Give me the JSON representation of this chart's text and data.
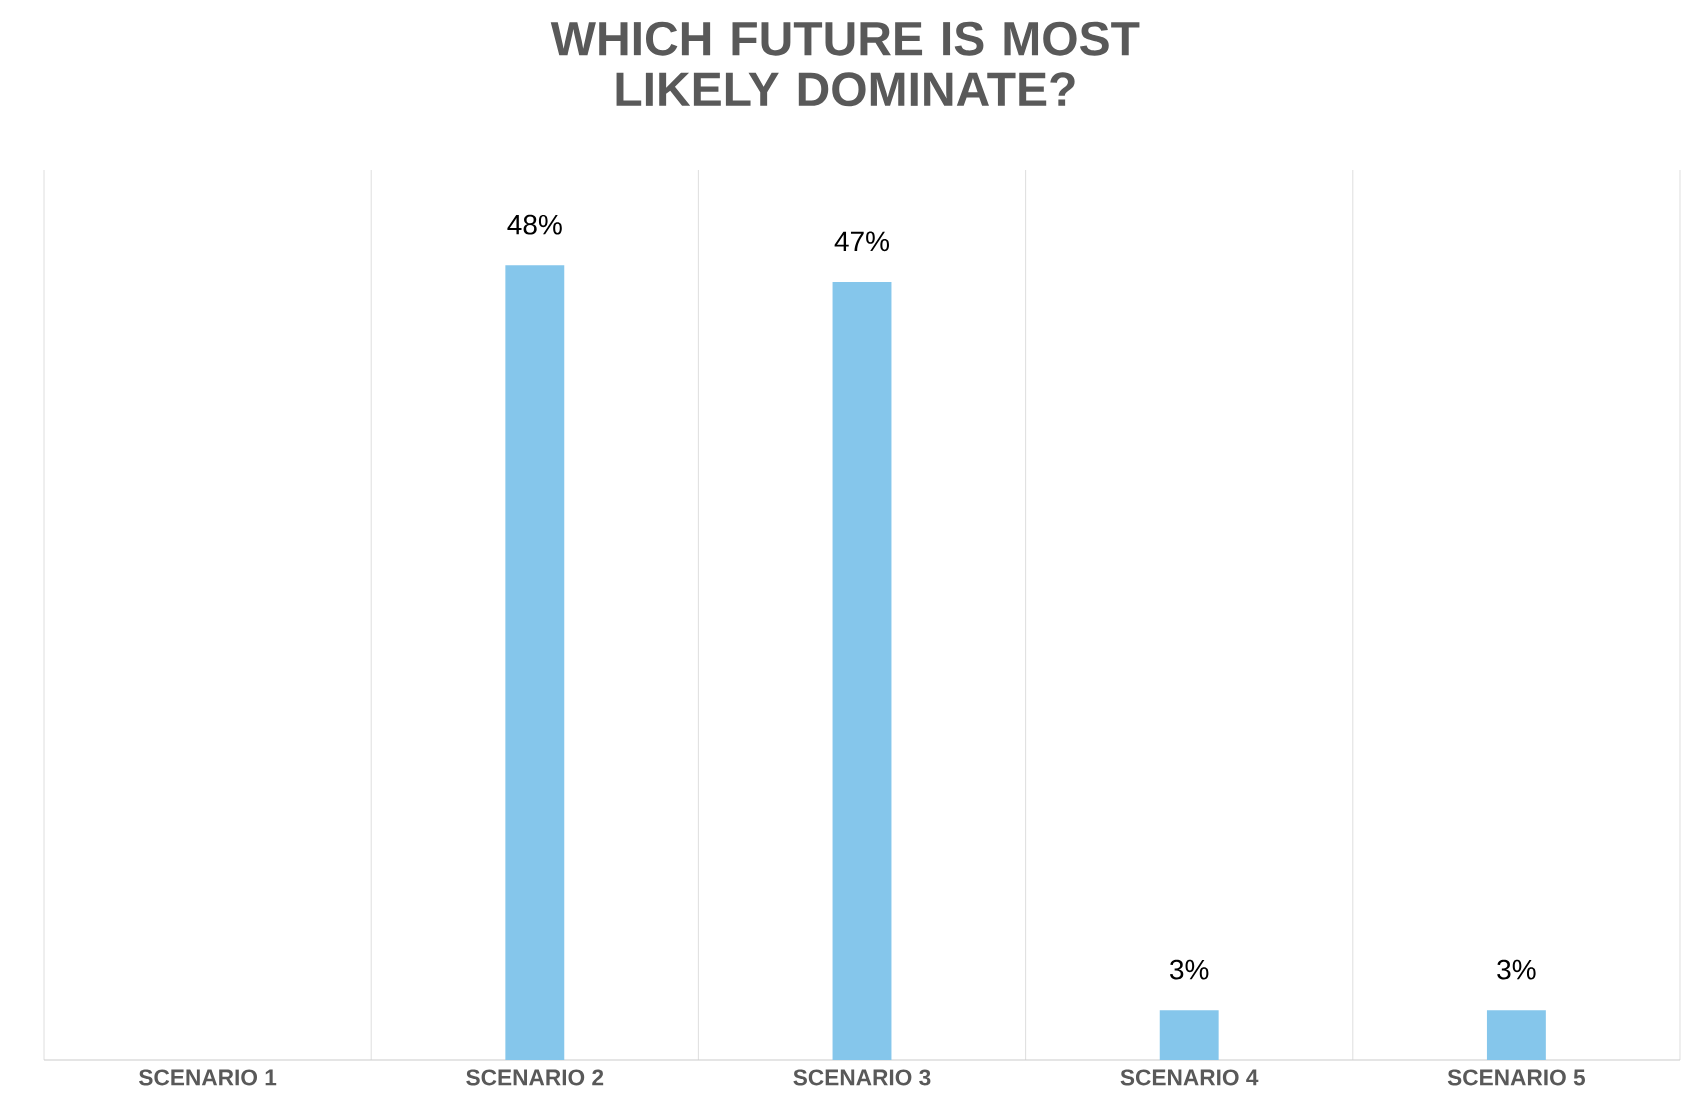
{
  "chart_data": {
    "type": "bar",
    "title": "WHICH FUTURE IS MOST LIKELY DOMINATE?",
    "categories": [
      "SCENARIO 1",
      "SCENARIO 2",
      "SCENARIO 3",
      "SCENARIO 4",
      "SCENARIO 5"
    ],
    "values": [
      0,
      48,
      47,
      3,
      3
    ],
    "value_labels": [
      null,
      "48%",
      "47%",
      "3%",
      "3%"
    ],
    "color": "#85c6eb",
    "grid": "x"
  }
}
